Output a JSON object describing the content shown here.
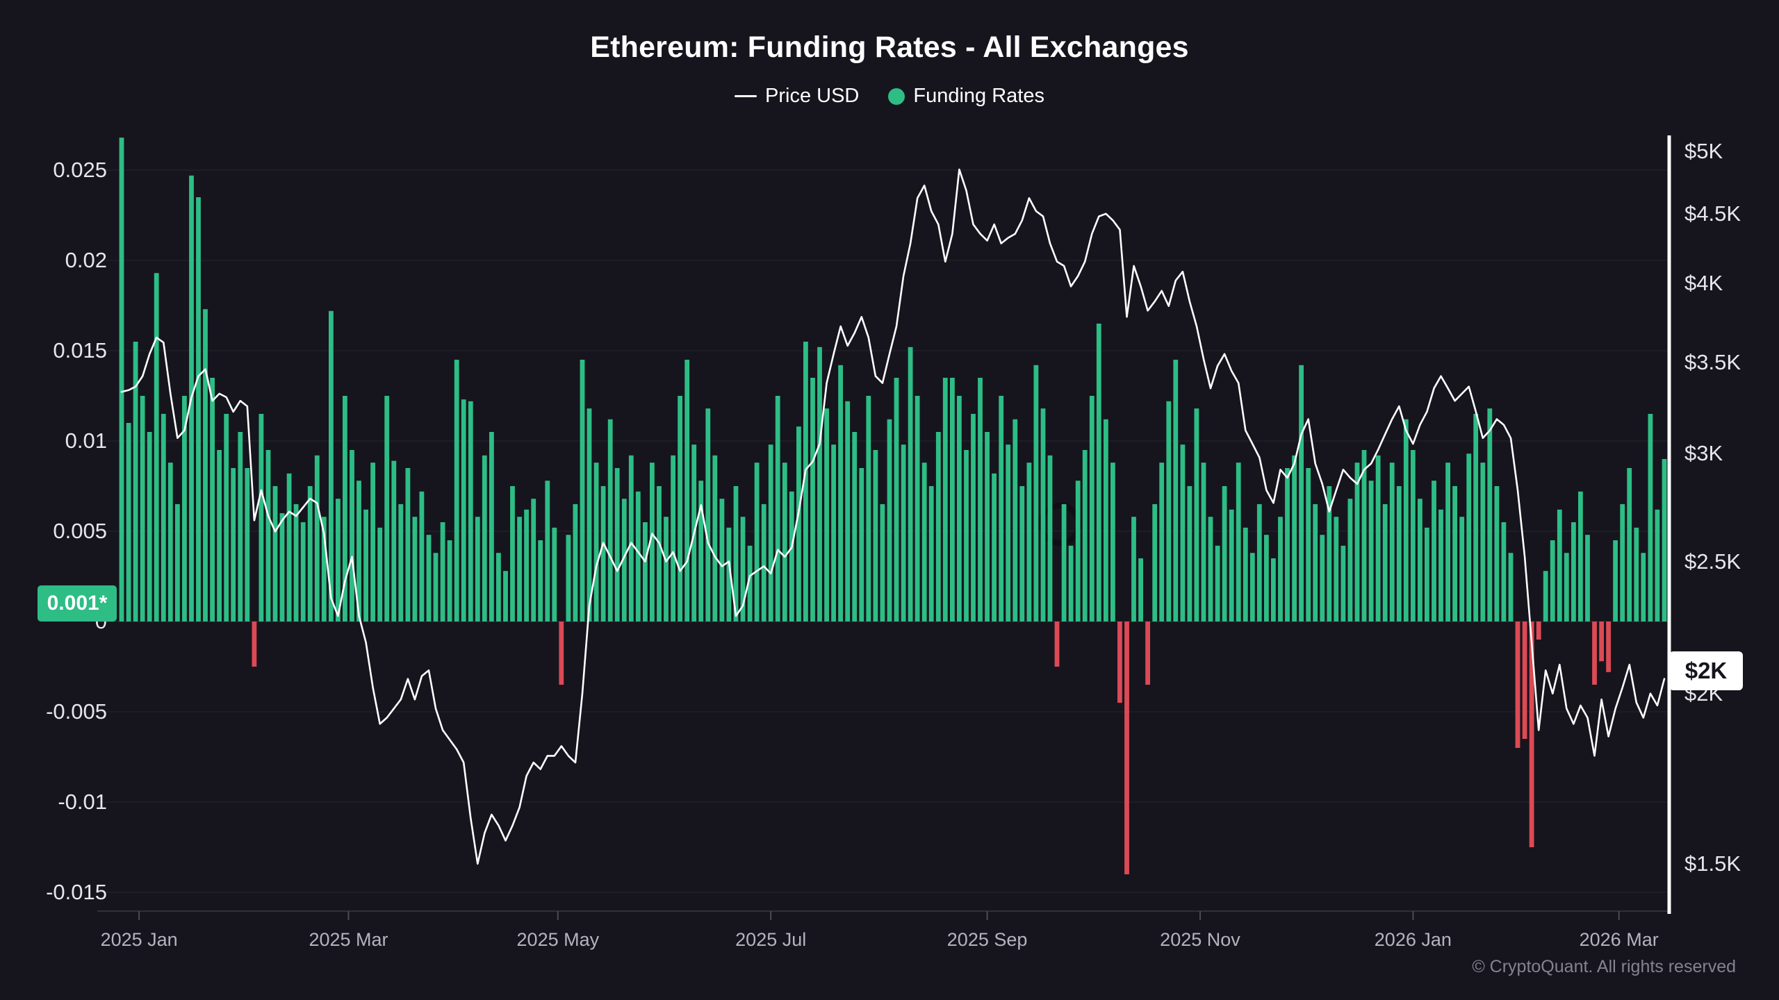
{
  "header": {
    "title": "Ethereum: Funding Rates - All Exchanges"
  },
  "legend": {
    "items": [
      {
        "label": "Price USD",
        "marker": "line"
      },
      {
        "label": "Funding Rates",
        "marker": "dot"
      }
    ]
  },
  "colors": {
    "background": "#16151e",
    "positive_bar": "#2dbd85",
    "negative_bar": "#dc4a55",
    "price_line": "#ffffff",
    "grid_line": "rgba(255,255,255,0.05)",
    "zero_line": "rgba(255,255,255,0.08)",
    "bottom_axis_line": "#30303a",
    "x_tick_mark": "#4a4a55",
    "right_axis_line": "#ffffff",
    "left_badge_bg": "#2dbd85",
    "left_badge_text": "#ffffff",
    "right_badge_bg": "#ffffff",
    "right_badge_text": "#15151d",
    "axis_text": "#e6e6ec",
    "x_axis_text": "#b4b4bf",
    "copyright_text": "#84848e"
  },
  "left_axis": {
    "title": "Funding Rates",
    "tick_labels": [
      "0.025",
      "0.02",
      "0.015",
      "0.01",
      "0.005",
      "0",
      "-0.005",
      "-0.01",
      "-0.015"
    ],
    "tick_values": [
      0.025,
      0.02,
      0.015,
      0.01,
      0.005,
      0,
      -0.005,
      -0.01,
      -0.015
    ],
    "current_badge": "0.001*"
  },
  "right_axis": {
    "title": "Price USD",
    "scale": "log",
    "tick_labels": [
      "$5K",
      "$4.5K",
      "$4K",
      "$3.5K",
      "$3K",
      "$2.5K",
      "$2K",
      "$1.5K"
    ],
    "tick_values_usd_k": [
      5,
      4.5,
      4,
      3.5,
      3,
      2.5,
      2,
      1.5
    ],
    "current_badge": "$2K"
  },
  "x_axis": {
    "ticks": [
      {
        "label": "2025 Jan",
        "i": 2.5
      },
      {
        "label": "2025 Mar",
        "i": 32.5
      },
      {
        "label": "2025 May",
        "i": 62.5
      },
      {
        "label": "2025 Jul",
        "i": 93
      },
      {
        "label": "2025 Sep",
        "i": 124
      },
      {
        "label": "2025 Nov",
        "i": 154.5
      },
      {
        "label": "2026 Jan",
        "i": 185
      },
      {
        "label": "2026 Mar",
        "i": 214.5
      }
    ]
  },
  "footer": {
    "copyright": "© CryptoQuant. All rights reserved"
  },
  "chart_data": {
    "type": "combo-bar-line",
    "title": "Ethereum: Funding Rates - All Exchanges",
    "x_range": [
      "2024-12-27",
      "2026-03-14"
    ],
    "sampling": "approx 2-day intervals read from chart",
    "x_tick_labels": [
      "2025 Jan",
      "2025 Mar",
      "2025 May",
      "2025 Jul",
      "2025 Sep",
      "2025 Nov",
      "2026 Jan",
      "2026 Mar"
    ],
    "left_axis_range": [
      -0.0161,
      0.0269
    ],
    "right_axis": {
      "scale": "log",
      "range_usd_k": [
        1.38,
        5.1
      ]
    },
    "current": {
      "funding_rate": 0.001,
      "price_usd_k": 2.0
    },
    "legend_position": "top-center",
    "grid": "horizontal-faint",
    "series": [
      {
        "name": "Funding Rates",
        "type": "bar",
        "axis": "left",
        "color": "#2dbd85",
        "negative_color": "#dc4a55",
        "values": [
          0.0268,
          0.011,
          0.0155,
          0.0125,
          0.0105,
          0.0193,
          0.0115,
          0.0088,
          0.0065,
          0.0125,
          0.0247,
          0.0235,
          0.0173,
          0.0135,
          0.0095,
          0.0115,
          0.0085,
          0.0105,
          0.0085,
          -0.0025,
          0.0115,
          0.0095,
          0.0075,
          0.006,
          0.0082,
          0.0065,
          0.0055,
          0.0075,
          0.0092,
          0.0058,
          0.0172,
          0.0068,
          0.0125,
          0.0095,
          0.0078,
          0.0062,
          0.0088,
          0.0052,
          0.0125,
          0.0089,
          0.0065,
          0.0085,
          0.0058,
          0.0072,
          0.0048,
          0.0038,
          0.0055,
          0.0045,
          0.0145,
          0.0123,
          0.0122,
          0.0058,
          0.0092,
          0.0105,
          0.0038,
          0.0028,
          0.0075,
          0.0058,
          0.0062,
          0.0068,
          0.0045,
          0.0078,
          0.0052,
          -0.0035,
          0.0048,
          0.0065,
          0.0145,
          0.0118,
          0.0088,
          0.0075,
          0.0112,
          0.0085,
          0.0068,
          0.0092,
          0.0072,
          0.0055,
          0.0088,
          0.0075,
          0.0058,
          0.0092,
          0.0125,
          0.0145,
          0.0098,
          0.0078,
          0.0118,
          0.0092,
          0.0068,
          0.0052,
          0.0075,
          0.0058,
          0.0042,
          0.0088,
          0.0065,
          0.0098,
          0.0125,
          0.0088,
          0.0072,
          0.0108,
          0.0155,
          0.0135,
          0.0152,
          0.0118,
          0.0098,
          0.0142,
          0.0122,
          0.0105,
          0.0085,
          0.0125,
          0.0095,
          0.0065,
          0.0112,
          0.0135,
          0.0098,
          0.0152,
          0.0125,
          0.0088,
          0.0075,
          0.0105,
          0.0135,
          0.0135,
          0.0125,
          0.0095,
          0.0115,
          0.0135,
          0.0105,
          0.0082,
          0.0125,
          0.0098,
          0.0112,
          0.0075,
          0.0088,
          0.0142,
          0.0118,
          0.0092,
          -0.0025,
          0.0065,
          0.0042,
          0.0078,
          0.0095,
          0.0125,
          0.0165,
          0.0112,
          0.0088,
          -0.0045,
          -0.014,
          0.0058,
          0.0035,
          -0.0035,
          0.0065,
          0.0088,
          0.0122,
          0.0145,
          0.0098,
          0.0075,
          0.0118,
          0.0088,
          0.0058,
          0.0042,
          0.0075,
          0.0062,
          0.0088,
          0.0052,
          0.0038,
          0.0065,
          0.0048,
          0.0035,
          0.0058,
          0.0085,
          0.0092,
          0.0142,
          0.0085,
          0.0065,
          0.0048,
          0.0075,
          0.0058,
          0.0042,
          0.0068,
          0.0088,
          0.0095,
          0.0078,
          0.0092,
          0.0065,
          0.0088,
          0.0075,
          0.0112,
          0.0095,
          0.0068,
          0.0052,
          0.0078,
          0.0062,
          0.0088,
          0.0075,
          0.0058,
          0.0093,
          0.0115,
          0.0088,
          0.0118,
          0.0075,
          0.0055,
          0.0038,
          -0.007,
          -0.0065,
          -0.0125,
          -0.001,
          0.0028,
          0.0045,
          0.0062,
          0.0038,
          0.0055,
          0.0072,
          0.0048,
          -0.0035,
          -0.0022,
          -0.0028,
          0.0045,
          0.0065,
          0.0085,
          0.0052,
          0.0038,
          0.0115,
          0.0062,
          0.009
        ]
      },
      {
        "name": "Price USD",
        "type": "line",
        "axis": "right",
        "unit": "USD thousands",
        "color": "#ffffff",
        "values": [
          3.33,
          3.34,
          3.36,
          3.42,
          3.55,
          3.65,
          3.62,
          3.32,
          3.08,
          3.12,
          3.3,
          3.42,
          3.46,
          3.28,
          3.32,
          3.3,
          3.22,
          3.28,
          3.25,
          2.68,
          2.82,
          2.7,
          2.63,
          2.68,
          2.72,
          2.7,
          2.74,
          2.78,
          2.76,
          2.62,
          2.35,
          2.28,
          2.42,
          2.52,
          2.28,
          2.18,
          2.02,
          1.9,
          1.92,
          1.95,
          1.98,
          2.05,
          1.98,
          2.06,
          2.08,
          1.95,
          1.88,
          1.85,
          1.82,
          1.78,
          1.62,
          1.5,
          1.58,
          1.63,
          1.6,
          1.56,
          1.6,
          1.65,
          1.74,
          1.78,
          1.76,
          1.8,
          1.8,
          1.83,
          1.8,
          1.78,
          2.0,
          2.32,
          2.48,
          2.58,
          2.52,
          2.46,
          2.52,
          2.58,
          2.54,
          2.5,
          2.62,
          2.58,
          2.5,
          2.54,
          2.46,
          2.5,
          2.62,
          2.75,
          2.58,
          2.52,
          2.48,
          2.5,
          2.28,
          2.32,
          2.44,
          2.46,
          2.48,
          2.45,
          2.55,
          2.52,
          2.56,
          2.72,
          2.92,
          2.96,
          3.05,
          3.38,
          3.55,
          3.72,
          3.6,
          3.68,
          3.78,
          3.65,
          3.42,
          3.38,
          3.55,
          3.72,
          4.05,
          4.28,
          4.62,
          4.72,
          4.52,
          4.42,
          4.15,
          4.35,
          4.85,
          4.68,
          4.42,
          4.35,
          4.3,
          4.42,
          4.28,
          4.32,
          4.35,
          4.45,
          4.62,
          4.52,
          4.48,
          4.28,
          4.15,
          4.12,
          3.98,
          4.05,
          4.15,
          4.35,
          4.48,
          4.5,
          4.45,
          4.38,
          3.78,
          4.12,
          3.98,
          3.82,
          3.88,
          3.95,
          3.85,
          4.02,
          4.08,
          3.88,
          3.72,
          3.52,
          3.35,
          3.48,
          3.55,
          3.45,
          3.38,
          3.12,
          3.05,
          2.98,
          2.82,
          2.76,
          2.92,
          2.88,
          2.95,
          3.1,
          3.18,
          2.95,
          2.85,
          2.72,
          2.82,
          2.92,
          2.88,
          2.85,
          2.92,
          2.95,
          3.02,
          3.1,
          3.18,
          3.25,
          3.12,
          3.05,
          3.15,
          3.22,
          3.35,
          3.42,
          3.35,
          3.28,
          3.32,
          3.36,
          3.22,
          3.08,
          3.12,
          3.18,
          3.15,
          3.08,
          2.82,
          2.52,
          2.18,
          1.88,
          2.08,
          2.0,
          2.1,
          1.95,
          1.9,
          1.96,
          1.92,
          1.8,
          1.98,
          1.86,
          1.95,
          2.02,
          2.1,
          1.97,
          1.92,
          2.0,
          1.96,
          2.05
        ]
      }
    ]
  }
}
